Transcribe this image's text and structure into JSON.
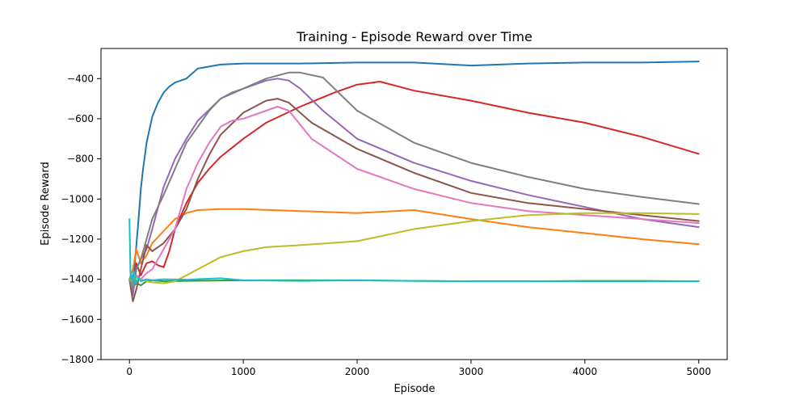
{
  "chart_data": {
    "type": "line",
    "title": "Training - Episode Reward over Time",
    "xlabel": "Episode",
    "ylabel": "Episode Reward",
    "xlim": [
      -250,
      5250
    ],
    "ylim": [
      -1800,
      -250
    ],
    "xticks": [
      0,
      1000,
      2000,
      3000,
      4000,
      5000
    ],
    "yticks": [
      -1800,
      -1600,
      -1400,
      -1200,
      -1000,
      -800,
      -600,
      -400
    ],
    "grid": false,
    "legend": "none",
    "series": [
      {
        "color": "#1f77b4",
        "x": [
          0,
          20,
          50,
          80,
          100,
          120,
          150,
          200,
          250,
          300,
          350,
          400,
          450,
          500,
          600,
          700,
          800,
          1000,
          1500,
          2000,
          2500,
          3000,
          3500,
          4000,
          4500,
          5000
        ],
        "y": [
          -1400,
          -1450,
          -1300,
          -1100,
          -950,
          -850,
          -720,
          -590,
          -520,
          -470,
          -440,
          -420,
          -410,
          -400,
          -350,
          -340,
          -330,
          -325,
          -325,
          -320,
          -320,
          -335,
          -325,
          -320,
          -320,
          -315
        ]
      },
      {
        "color": "#ff7f0e",
        "x": [
          0,
          30,
          60,
          100,
          150,
          200,
          300,
          400,
          500,
          600,
          800,
          1000,
          1500,
          2000,
          2500,
          3000,
          3500,
          4000,
          4500,
          5000
        ],
        "y": [
          -1400,
          -1350,
          -1250,
          -1320,
          -1280,
          -1220,
          -1160,
          -1100,
          -1070,
          -1055,
          -1050,
          -1050,
          -1060,
          -1070,
          -1055,
          -1100,
          -1140,
          -1170,
          -1200,
          -1225
        ]
      },
      {
        "color": "#2ca02c",
        "x": [
          0,
          30,
          60,
          100,
          150,
          200,
          300,
          500,
          1000,
          1500,
          2000,
          2500,
          3000,
          3500,
          4000,
          4500,
          5000
        ],
        "y": [
          -1400,
          -1440,
          -1420,
          -1430,
          -1410,
          -1405,
          -1410,
          -1408,
          -1405,
          -1405,
          -1405,
          -1408,
          -1410,
          -1410,
          -1408,
          -1408,
          -1410
        ]
      },
      {
        "color": "#d62728",
        "x": [
          0,
          30,
          60,
          100,
          150,
          200,
          250,
          300,
          350,
          400,
          500,
          600,
          700,
          800,
          1000,
          1200,
          1500,
          1800,
          2000,
          2200,
          2500,
          3000,
          3500,
          4000,
          4500,
          5000
        ],
        "y": [
          -1400,
          -1460,
          -1320,
          -1380,
          -1320,
          -1310,
          -1330,
          -1340,
          -1260,
          -1150,
          -1020,
          -920,
          -850,
          -790,
          -700,
          -620,
          -540,
          -470,
          -430,
          -415,
          -460,
          -510,
          -570,
          -620,
          -690,
          -775
        ]
      },
      {
        "color": "#9467bd",
        "x": [
          0,
          30,
          60,
          100,
          150,
          200,
          300,
          400,
          500,
          600,
          800,
          1000,
          1200,
          1300,
          1400,
          1500,
          1700,
          2000,
          2500,
          3000,
          3500,
          4000,
          4500,
          5000
        ],
        "y": [
          -1400,
          -1480,
          -1350,
          -1300,
          -1250,
          -1150,
          -940,
          -800,
          -700,
          -610,
          -500,
          -450,
          -410,
          -400,
          -410,
          -450,
          -560,
          -700,
          -820,
          -910,
          -980,
          -1040,
          -1100,
          -1140
        ]
      },
      {
        "color": "#8c564b",
        "x": [
          0,
          30,
          60,
          100,
          150,
          200,
          300,
          400,
          500,
          600,
          700,
          800,
          1000,
          1200,
          1300,
          1400,
          1600,
          2000,
          2500,
          3000,
          3500,
          4000,
          4500,
          5000
        ],
        "y": [
          -1400,
          -1510,
          -1450,
          -1350,
          -1230,
          -1260,
          -1220,
          -1150,
          -1050,
          -900,
          -780,
          -680,
          -570,
          -510,
          -500,
          -520,
          -620,
          -750,
          -870,
          -970,
          -1020,
          -1050,
          -1080,
          -1110
        ]
      },
      {
        "color": "#e377c2",
        "x": [
          0,
          30,
          60,
          100,
          150,
          200,
          300,
          400,
          500,
          600,
          700,
          800,
          900,
          1000,
          1100,
          1200,
          1300,
          1400,
          1600,
          2000,
          2500,
          3000,
          3500,
          4000,
          4500,
          5000
        ],
        "y": [
          -1400,
          -1450,
          -1380,
          -1400,
          -1370,
          -1350,
          -1250,
          -1150,
          -950,
          -820,
          -720,
          -640,
          -610,
          -600,
          -580,
          -560,
          -540,
          -560,
          -700,
          -850,
          -950,
          -1020,
          -1060,
          -1080,
          -1100,
          -1120
        ]
      },
      {
        "color": "#7f7f7f",
        "x": [
          0,
          30,
          60,
          100,
          150,
          200,
          300,
          400,
          500,
          600,
          700,
          800,
          900,
          1000,
          1200,
          1400,
          1500,
          1700,
          2000,
          2500,
          3000,
          3500,
          4000,
          4500,
          5000
        ],
        "y": [
          -1400,
          -1450,
          -1350,
          -1300,
          -1200,
          -1100,
          -980,
          -850,
          -720,
          -640,
          -560,
          -500,
          -470,
          -450,
          -400,
          -370,
          -370,
          -395,
          -560,
          -720,
          -820,
          -890,
          -950,
          -990,
          -1025
        ]
      },
      {
        "color": "#bcbd22",
        "x": [
          0,
          30,
          60,
          100,
          150,
          200,
          300,
          400,
          500,
          600,
          700,
          800,
          1000,
          1200,
          1500,
          2000,
          2500,
          3000,
          3500,
          4000,
          4500,
          5000
        ],
        "y": [
          -1400,
          -1410,
          -1390,
          -1400,
          -1410,
          -1415,
          -1420,
          -1410,
          -1380,
          -1350,
          -1320,
          -1290,
          -1260,
          -1240,
          -1230,
          -1210,
          -1150,
          -1110,
          -1080,
          -1070,
          -1070,
          -1075
        ]
      },
      {
        "color": "#17becf",
        "x": [
          0,
          10,
          20,
          30,
          40,
          60,
          80,
          100,
          150,
          200,
          300,
          500,
          800,
          1000,
          1500,
          2000,
          2500,
          3000,
          3500,
          4000,
          4500,
          5000
        ],
        "y": [
          -1100,
          -1400,
          -1380,
          -1430,
          -1360,
          -1420,
          -1390,
          -1410,
          -1400,
          -1405,
          -1400,
          -1402,
          -1395,
          -1405,
          -1408,
          -1405,
          -1408,
          -1410,
          -1410,
          -1410,
          -1410,
          -1410
        ]
      }
    ]
  }
}
